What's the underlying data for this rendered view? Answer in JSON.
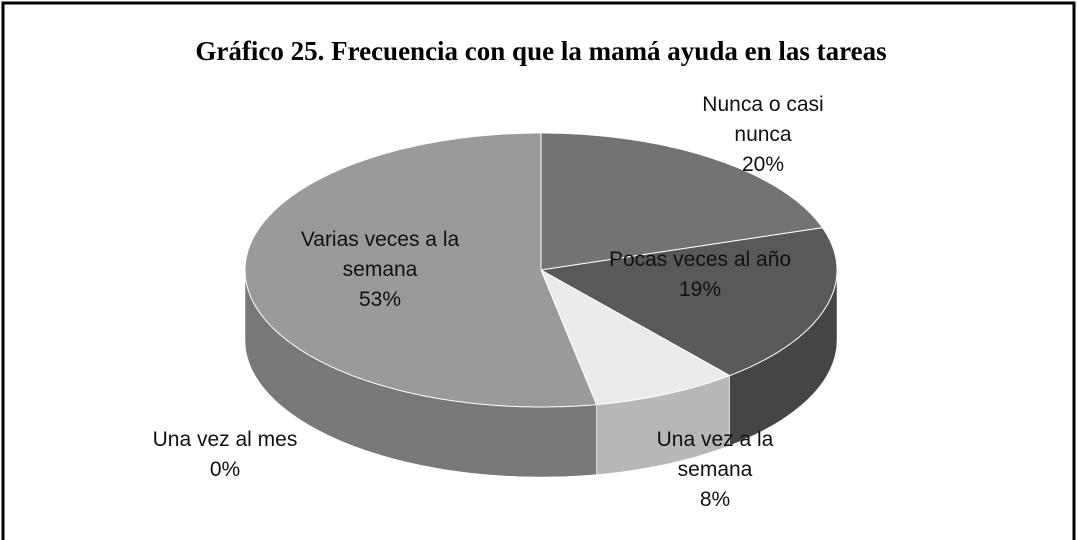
{
  "chart_data": {
    "type": "pie",
    "title": "Gráfico 25.  Frecuencia con que la mamá ayuda en las tareas",
    "categories": [
      "Nunca o casi nunca",
      "Pocas veces al año",
      "Una vez a la semana",
      "Una vez al mes",
      "Varias veces a la semana"
    ],
    "values": [
      20,
      19,
      8,
      0,
      53
    ],
    "value_labels": [
      "20%",
      "19%",
      "8%",
      "0%",
      "53%"
    ],
    "colors": [
      "#737373",
      "#595959",
      "#ebebeb",
      "#bdbdbd",
      "#9a9a9a"
    ]
  }
}
